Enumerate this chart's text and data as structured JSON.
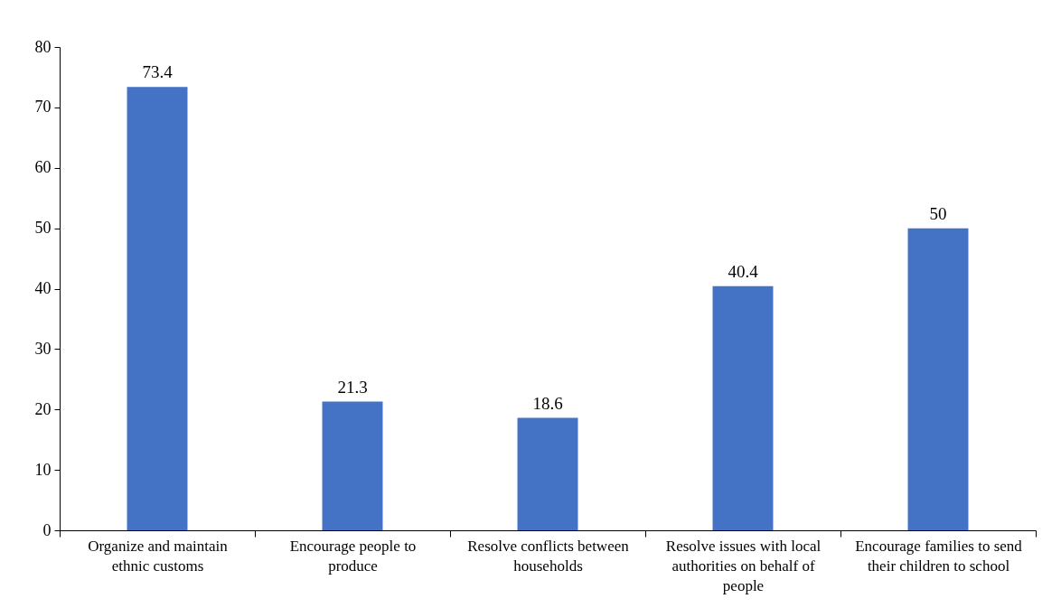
{
  "chart_data": {
    "type": "bar",
    "categories": [
      "Organize and maintain ethnic customs",
      "Encourage people to produce",
      "Resolve conflicts between households",
      "Resolve issues with local authorities on behalf of people",
      "Encourage families to send their children to school"
    ],
    "values": [
      73.4,
      21.3,
      18.6,
      40.4,
      50
    ],
    "color": "#4472c4",
    "ylim": [
      0,
      80
    ],
    "yticks": [
      0,
      10,
      20,
      30,
      40,
      50,
      60,
      70,
      80
    ],
    "data_labels": true,
    "grid": false
  }
}
